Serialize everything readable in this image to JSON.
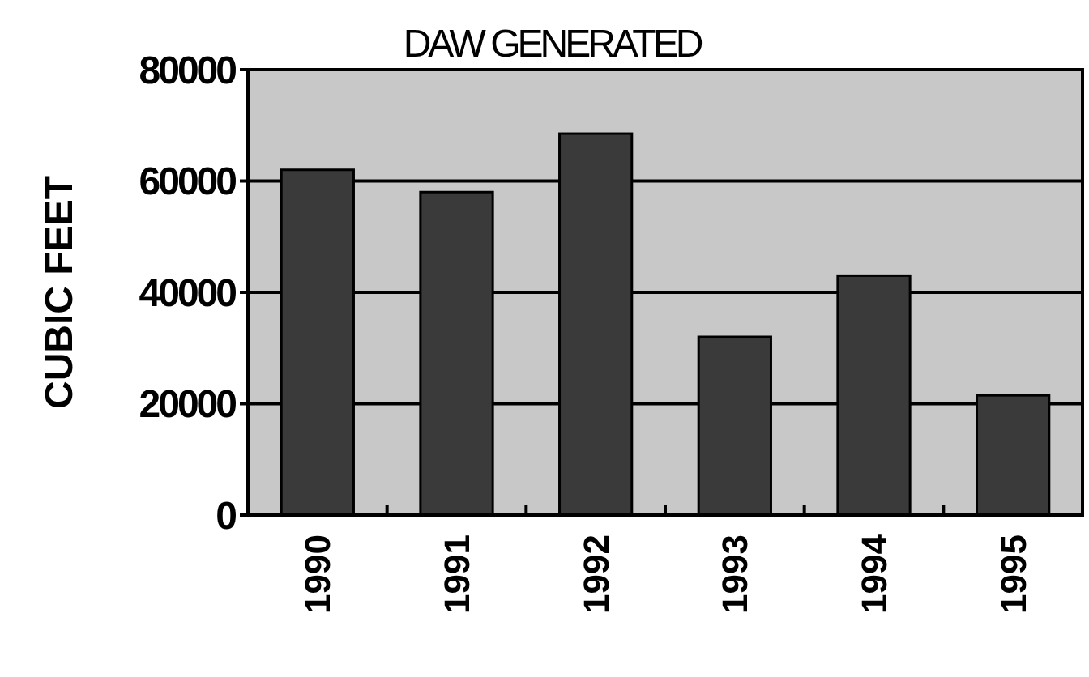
{
  "chart_data": {
    "type": "bar",
    "title": "DAW GENERATED",
    "ylabel": "CUBIC FEET",
    "categories": [
      "1990",
      "1991",
      "1992",
      "1993",
      "1994",
      "1995"
    ],
    "values": [
      62000,
      58000,
      68500,
      32000,
      43000,
      21500
    ],
    "color": "#3a3a3a",
    "ylim": [
      0,
      80000
    ],
    "yticks": [
      0,
      20000,
      40000,
      60000,
      80000
    ],
    "grid": "y"
  }
}
